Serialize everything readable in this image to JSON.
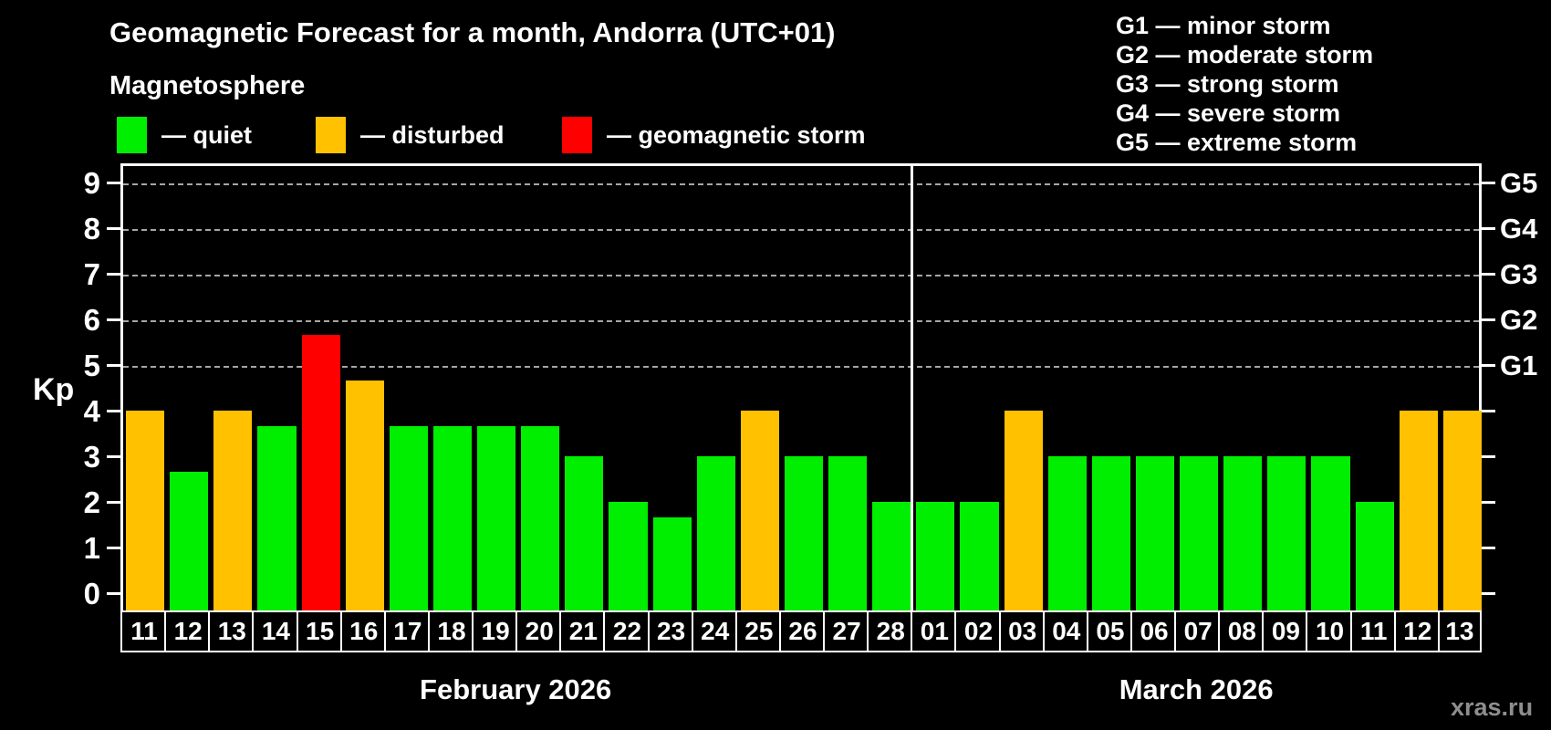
{
  "header": {
    "title": "Geomagnetic Forecast for a month, Andorra (UTC+01)",
    "subtitle": "Magnetosphere"
  },
  "colors": {
    "quiet": "#00ee00",
    "disturbed": "#ffc100",
    "storm": "#ff0000"
  },
  "legend": {
    "items": [
      {
        "label": "— quiet",
        "color_key": "quiet",
        "x": 128
      },
      {
        "label": "— disturbed",
        "color_key": "disturbed",
        "x": 346
      },
      {
        "label": "— geomagnetic storm",
        "color_key": "storm",
        "x": 616
      }
    ]
  },
  "g_scale_legend": {
    "items": [
      "G1 — minor storm",
      "G2 — moderate storm",
      "G3 — strong storm",
      "G4 — severe storm",
      "G5 — extreme storm"
    ]
  },
  "axis": {
    "y_label": "Kp",
    "y_ticks": [
      0,
      1,
      2,
      3,
      4,
      5,
      6,
      7,
      8,
      9
    ],
    "right_labels": [
      {
        "kp": 5,
        "text": "G1"
      },
      {
        "kp": 6,
        "text": "G2"
      },
      {
        "kp": 7,
        "text": "G3"
      },
      {
        "kp": 8,
        "text": "G4"
      },
      {
        "kp": 9,
        "text": "G5"
      }
    ]
  },
  "chart_data": {
    "type": "bar",
    "ylabel": "Kp",
    "ylim": [
      0,
      9.4
    ],
    "gridlines_at_kp": [
      5,
      6,
      7,
      8,
      9
    ],
    "grid": "dashed, only at G-storm levels Kp 5-9",
    "legend_position": "top-left",
    "groups": [
      {
        "label": "February 2026",
        "days": 18
      },
      {
        "label": "March 2026",
        "days": 13
      }
    ],
    "bars": [
      {
        "day": "11",
        "month": "February 2026",
        "kp": 4.0,
        "status": "disturbed"
      },
      {
        "day": "12",
        "month": "February 2026",
        "kp": 2.67,
        "status": "quiet"
      },
      {
        "day": "13",
        "month": "February 2026",
        "kp": 4.0,
        "status": "disturbed"
      },
      {
        "day": "14",
        "month": "February 2026",
        "kp": 3.67,
        "status": "quiet"
      },
      {
        "day": "15",
        "month": "February 2026",
        "kp": 5.67,
        "status": "storm"
      },
      {
        "day": "16",
        "month": "February 2026",
        "kp": 4.67,
        "status": "disturbed"
      },
      {
        "day": "17",
        "month": "February 2026",
        "kp": 3.67,
        "status": "quiet"
      },
      {
        "day": "18",
        "month": "February 2026",
        "kp": 3.67,
        "status": "quiet"
      },
      {
        "day": "19",
        "month": "February 2026",
        "kp": 3.67,
        "status": "quiet"
      },
      {
        "day": "20",
        "month": "February 2026",
        "kp": 3.67,
        "status": "quiet"
      },
      {
        "day": "21",
        "month": "February 2026",
        "kp": 3.0,
        "status": "quiet"
      },
      {
        "day": "22",
        "month": "February 2026",
        "kp": 2.0,
        "status": "quiet"
      },
      {
        "day": "23",
        "month": "February 2026",
        "kp": 1.67,
        "status": "quiet"
      },
      {
        "day": "24",
        "month": "February 2026",
        "kp": 3.0,
        "status": "quiet"
      },
      {
        "day": "25",
        "month": "February 2026",
        "kp": 4.0,
        "status": "disturbed"
      },
      {
        "day": "26",
        "month": "February 2026",
        "kp": 3.0,
        "status": "quiet"
      },
      {
        "day": "27",
        "month": "February 2026",
        "kp": 3.0,
        "status": "quiet"
      },
      {
        "day": "28",
        "month": "February 2026",
        "kp": 2.0,
        "status": "quiet"
      },
      {
        "day": "01",
        "month": "March 2026",
        "kp": 2.0,
        "status": "quiet"
      },
      {
        "day": "02",
        "month": "March 2026",
        "kp": 2.0,
        "status": "quiet"
      },
      {
        "day": "03",
        "month": "March 2026",
        "kp": 4.0,
        "status": "disturbed"
      },
      {
        "day": "04",
        "month": "March 2026",
        "kp": 3.0,
        "status": "quiet"
      },
      {
        "day": "05",
        "month": "March 2026",
        "kp": 3.0,
        "status": "quiet"
      },
      {
        "day": "06",
        "month": "March 2026",
        "kp": 3.0,
        "status": "quiet"
      },
      {
        "day": "07",
        "month": "March 2026",
        "kp": 3.0,
        "status": "quiet"
      },
      {
        "day": "08",
        "month": "March 2026",
        "kp": 3.0,
        "status": "quiet"
      },
      {
        "day": "09",
        "month": "March 2026",
        "kp": 3.0,
        "status": "quiet"
      },
      {
        "day": "10",
        "month": "March 2026",
        "kp": 3.0,
        "status": "quiet"
      },
      {
        "day": "11",
        "month": "March 2026",
        "kp": 2.0,
        "status": "quiet"
      },
      {
        "day": "12",
        "month": "March 2026",
        "kp": 4.0,
        "status": "disturbed"
      },
      {
        "day": "13",
        "month": "March 2026",
        "kp": 4.0,
        "status": "disturbed"
      }
    ]
  },
  "watermark": "xras.ru"
}
